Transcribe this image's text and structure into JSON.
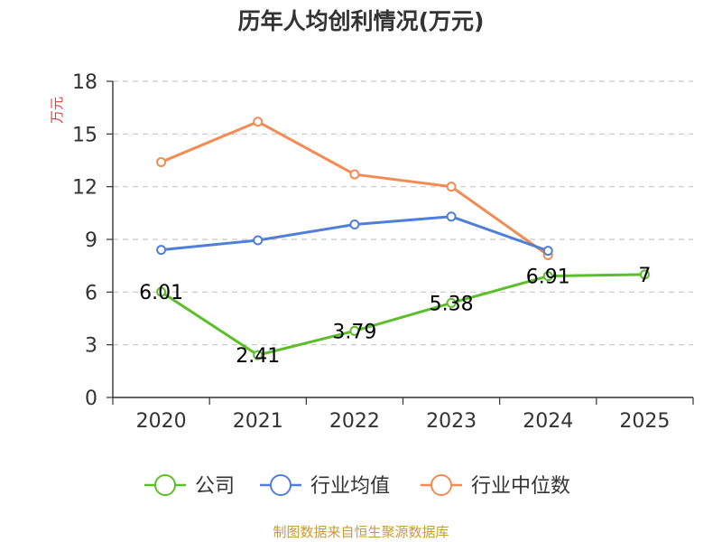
{
  "chart_data": {
    "type": "line",
    "title": "历年人均创利情况(万元)",
    "ylabel": "万元",
    "xlabel": "",
    "categories": [
      "2020",
      "2021",
      "2022",
      "2023",
      "2024",
      "2025"
    ],
    "ylim": [
      0,
      18
    ],
    "yticks": [
      0,
      3,
      6,
      9,
      12,
      15,
      18
    ],
    "ytick_labels": [
      "0",
      "3",
      "6",
      "9",
      "12",
      "15",
      "18"
    ],
    "grid": true,
    "legend_position": "bottom",
    "series": [
      {
        "name": "公司",
        "color": "#5cbf2a",
        "values": [
          6.01,
          2.41,
          3.79,
          5.38,
          6.91,
          7.0
        ],
        "labels": [
          "6.01",
          "2.41",
          "3.79",
          "5.38",
          "6.91",
          "7"
        ]
      },
      {
        "name": "行业均值",
        "color": "#4f7fd9",
        "values": [
          8.4,
          8.95,
          9.85,
          10.3,
          8.35,
          null
        ],
        "labels": null
      },
      {
        "name": "行业中位数",
        "color": "#f28c54",
        "values": [
          13.4,
          15.7,
          12.7,
          12.0,
          8.1,
          null
        ],
        "labels": null
      }
    ],
    "source": "制图数据来自恒生聚源数据库"
  }
}
